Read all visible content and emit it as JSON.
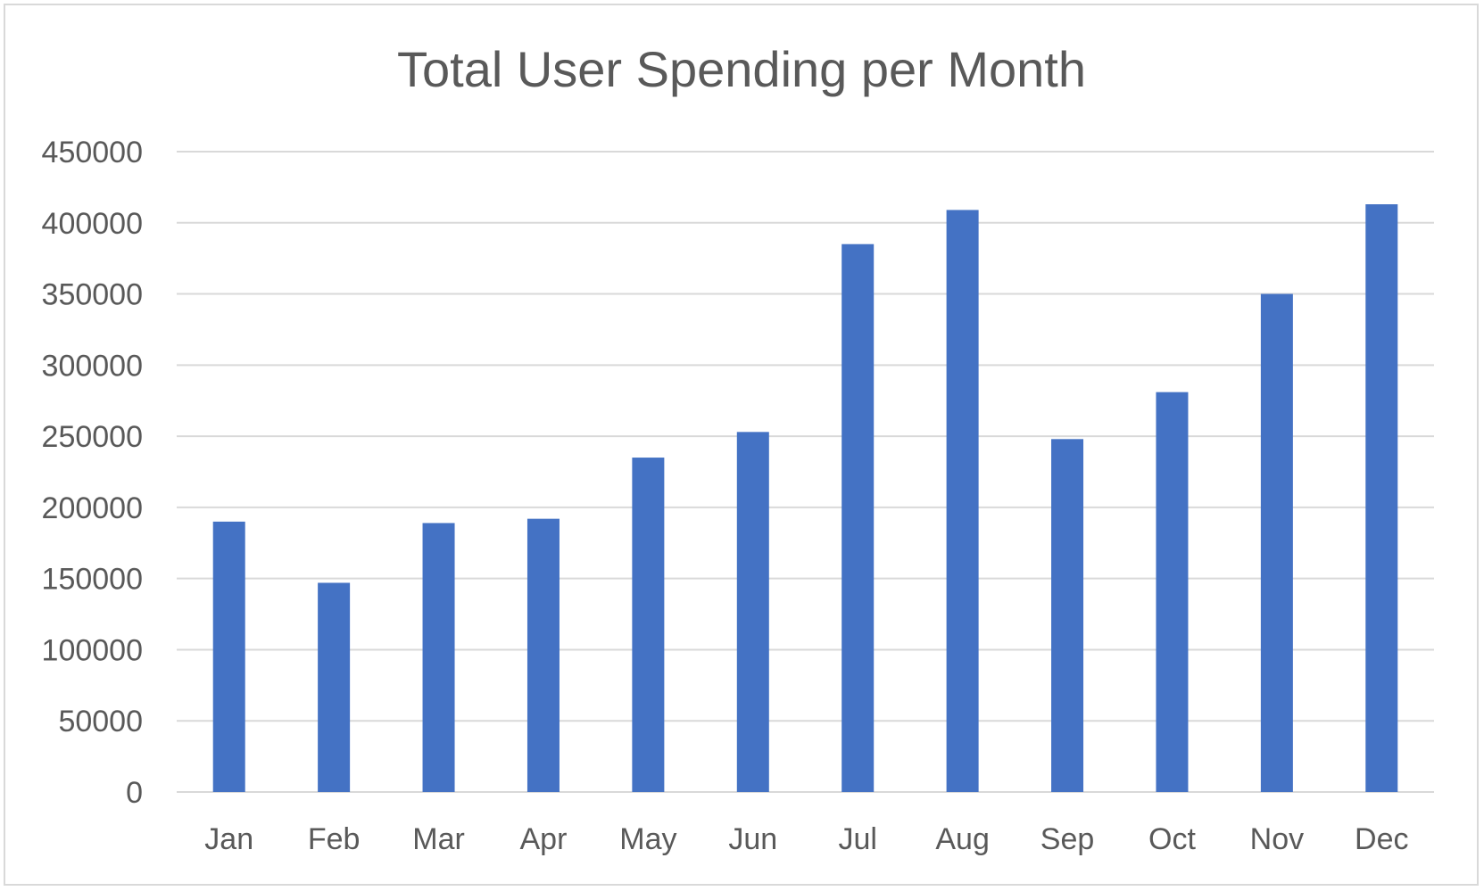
{
  "chart_data": {
    "type": "bar",
    "title": "Total User Spending per Month",
    "xlabel": "",
    "ylabel": "",
    "categories": [
      "Jan",
      "Feb",
      "Mar",
      "Apr",
      "May",
      "Jun",
      "Jul",
      "Aug",
      "Sep",
      "Oct",
      "Nov",
      "Dec"
    ],
    "values": [
      190000,
      147000,
      189000,
      192000,
      235000,
      253000,
      385000,
      409000,
      248000,
      281000,
      350000,
      413000
    ],
    "ylim": [
      0,
      450000
    ],
    "yticks": [
      0,
      50000,
      100000,
      150000,
      200000,
      250000,
      300000,
      350000,
      400000,
      450000
    ],
    "ytick_labels": [
      "0",
      "50000",
      "100000",
      "150000",
      "200000",
      "250000",
      "300000",
      "350000",
      "400000",
      "450000"
    ],
    "grid": true,
    "legend": "none",
    "bar_color": "#4472c4"
  }
}
